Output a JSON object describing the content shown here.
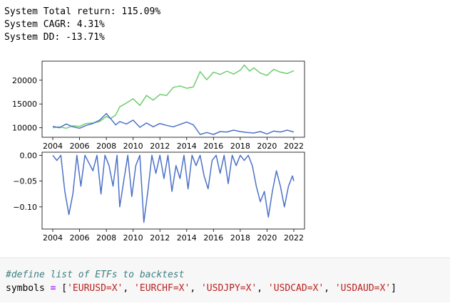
{
  "stdout": [
    "System Total return: 115.09%",
    "System CAGR: 4.31%",
    "System DD: -13.71%"
  ],
  "chart_data": [
    {
      "type": "line",
      "xlim": [
        2003.2,
        2022.8
      ],
      "ylim": [
        8000,
        24000
      ],
      "x_ticks": [
        "2004",
        "2006",
        "2008",
        "2010",
        "2012",
        "2014",
        "2016",
        "2018",
        "2020",
        "2022"
      ],
      "y_ticks": [
        "10000",
        "15000",
        "20000"
      ],
      "colors": {
        "blue": "#4c72c8",
        "green": "#6cce6c"
      },
      "series": [
        {
          "color_key": "green",
          "x": [
            2004,
            2004.5,
            2005,
            2005.5,
            2006,
            2006.5,
            2007,
            2007.5,
            2008,
            2008.3,
            2008.7,
            2009,
            2009.5,
            2010,
            2010.5,
            2011,
            2011.5,
            2012,
            2012.5,
            2013,
            2013.5,
            2014,
            2014.5,
            2015,
            2015.5,
            2016,
            2016.5,
            2017,
            2017.5,
            2018,
            2018.3,
            2018.7,
            2019,
            2019.5,
            2020,
            2020.5,
            2021,
            2021.5,
            2022
          ],
          "y": [
            10000,
            10200,
            9900,
            10400,
            10300,
            10900,
            11000,
            11300,
            12400,
            11900,
            12700,
            14400,
            15200,
            16100,
            14700,
            16800,
            15800,
            17000,
            16800,
            18500,
            18800,
            18300,
            18600,
            21800,
            20100,
            21700,
            21200,
            21900,
            21300,
            22100,
            23200,
            21900,
            22600,
            21500,
            21000,
            22300,
            21700,
            21400,
            22000
          ]
        },
        {
          "color_key": "blue",
          "x": [
            2004,
            2004.5,
            2005,
            2005.5,
            2006,
            2006.5,
            2007,
            2007.5,
            2008,
            2008.3,
            2008.7,
            2009,
            2009.5,
            2010,
            2010.5,
            2011,
            2011.5,
            2012,
            2012.5,
            2013,
            2013.5,
            2014,
            2014.5,
            2015,
            2015.5,
            2016,
            2016.5,
            2017,
            2017.5,
            2018,
            2018.5,
            2019,
            2019.5,
            2020,
            2020.5,
            2021,
            2021.5,
            2022
          ],
          "y": [
            10300,
            10000,
            10800,
            10200,
            9900,
            10500,
            10900,
            11600,
            13000,
            12000,
            10600,
            11300,
            10800,
            11600,
            10100,
            11000,
            10200,
            10900,
            10500,
            10200,
            10700,
            11200,
            10600,
            8600,
            9000,
            8600,
            9200,
            9100,
            9500,
            9200,
            9000,
            8900,
            9200,
            8700,
            9300,
            9100,
            9500,
            9100
          ]
        }
      ]
    },
    {
      "type": "line",
      "xlim": [
        2003.2,
        2022.8
      ],
      "ylim": [
        -0.143,
        0.006
      ],
      "x_ticks": [
        "2004",
        "2006",
        "2008",
        "2010",
        "2012",
        "2014",
        "2016",
        "2018",
        "2020",
        "2022"
      ],
      "y_ticks": [
        "0.00",
        "−0.05",
        "−0.10"
      ],
      "y_tick_values": [
        0,
        -0.05,
        -0.1
      ],
      "colors": {
        "blue": "#4c72c8"
      },
      "series": [
        {
          "color_key": "blue",
          "x": [
            2004,
            2004.3,
            2004.6,
            2004.9,
            2005.2,
            2005.5,
            2005.8,
            2006.1,
            2006.4,
            2006.7,
            2007,
            2007.3,
            2007.6,
            2007.9,
            2008.2,
            2008.5,
            2008.8,
            2009,
            2009.3,
            2009.6,
            2009.9,
            2010.2,
            2010.5,
            2010.8,
            2011.1,
            2011.4,
            2011.7,
            2012,
            2012.3,
            2012.6,
            2012.9,
            2013.2,
            2013.5,
            2013.8,
            2014.1,
            2014.4,
            2014.7,
            2015,
            2015.3,
            2015.6,
            2015.9,
            2016.2,
            2016.5,
            2016.8,
            2017.1,
            2017.4,
            2017.7,
            2018,
            2018.3,
            2018.6,
            2018.9,
            2019.2,
            2019.5,
            2019.8,
            2020.1,
            2020.4,
            2020.7,
            2021,
            2021.3,
            2021.6,
            2021.9,
            2022
          ],
          "y": [
            0,
            -0.01,
            0,
            -0.07,
            -0.115,
            -0.075,
            0,
            -0.06,
            0,
            -0.015,
            -0.03,
            0,
            -0.075,
            0,
            -0.02,
            -0.06,
            0,
            -0.1,
            -0.05,
            0,
            -0.08,
            -0.02,
            0,
            -0.13,
            -0.07,
            0,
            -0.035,
            0,
            -0.045,
            0,
            -0.07,
            -0.02,
            -0.045,
            0,
            -0.065,
            0,
            -0.02,
            0,
            -0.04,
            -0.065,
            -0.01,
            0,
            -0.035,
            0,
            -0.055,
            0,
            -0.02,
            0,
            -0.01,
            0,
            -0.02,
            -0.06,
            -0.09,
            -0.07,
            -0.12,
            -0.07,
            -0.03,
            -0.06,
            -0.1,
            -0.06,
            -0.04,
            -0.05
          ]
        }
      ]
    }
  ],
  "cell": {
    "comment": "#define list of ETFs to backtest",
    "var": "symbols ",
    "op": "=",
    "open": " [",
    "items": [
      "'EURUSD=X'",
      "'EURCHF=X'",
      "'USDJPY=X'",
      "'USDCAD=X'",
      "'USDAUD=X'"
    ],
    "sep": ", ",
    "close": "]"
  }
}
